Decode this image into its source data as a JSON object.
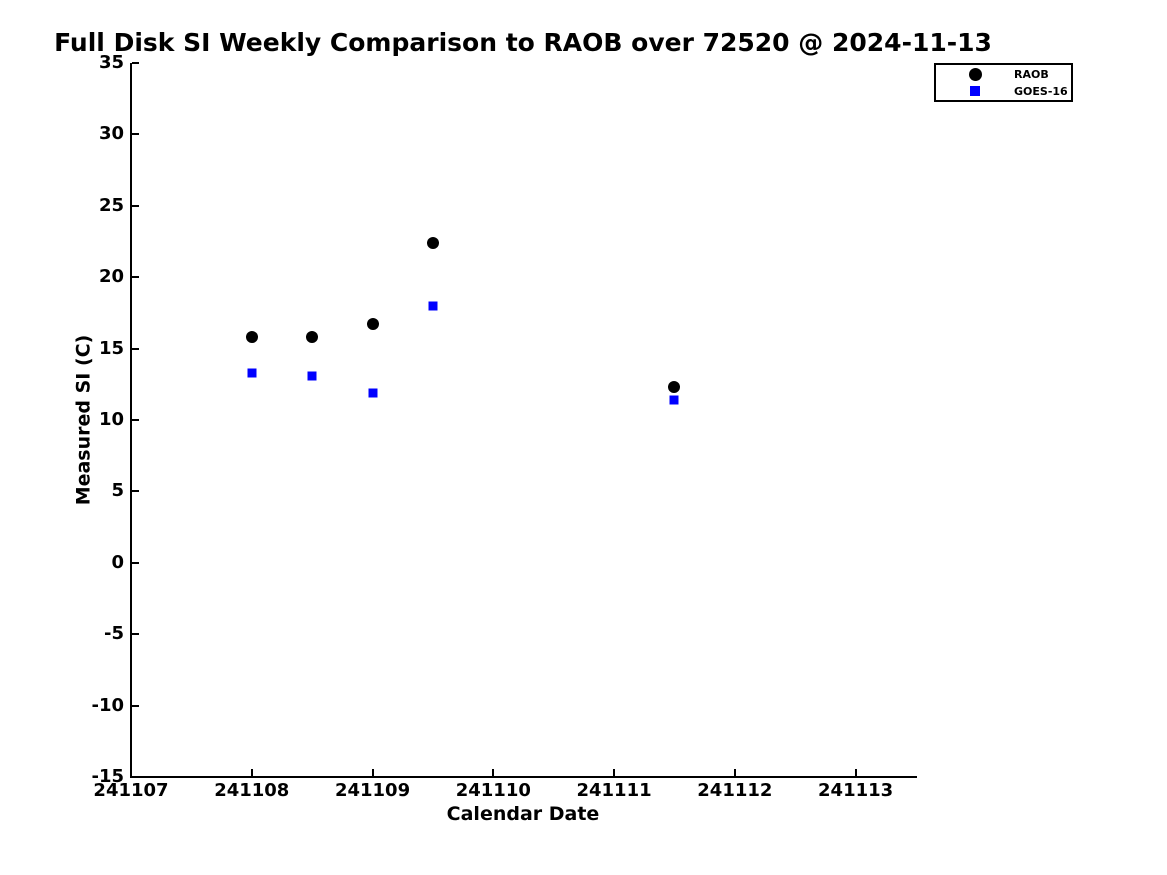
{
  "figure": {
    "background_color": "#ffffff",
    "axis_color": "#000000"
  },
  "chart_data": {
    "type": "scatter",
    "title": "Full Disk SI Weekly Comparison to RAOB over 72520 @ 2024-11-13",
    "xlabel": "Calendar Date",
    "ylabel": "Measured SI (C)",
    "xlim": [
      241107,
      241113.5
    ],
    "ylim": [
      -15,
      35
    ],
    "x_ticks": [
      241107,
      241108,
      241109,
      241110,
      241111,
      241112,
      241113
    ],
    "y_ticks": [
      35,
      30,
      25,
      20,
      15,
      10,
      5,
      0,
      -5,
      -10,
      -15
    ],
    "grid": false,
    "legend": {
      "position": "top-right-outside",
      "entries": [
        "RAOB",
        "GOES-16"
      ]
    },
    "series": [
      {
        "name": "RAOB",
        "marker": "circle",
        "color": "#000000",
        "x": [
          241108,
          241108.5,
          241109,
          241109.5,
          241111.5
        ],
        "y": [
          15.8,
          15.8,
          16.7,
          22.4,
          12.3
        ]
      },
      {
        "name": "GOES-16",
        "marker": "square",
        "color": "#0000ff",
        "x": [
          241108,
          241108.5,
          241109,
          241109.5,
          241111.5
        ],
        "y": [
          13.3,
          13.1,
          11.9,
          18.0,
          11.4
        ]
      }
    ]
  }
}
